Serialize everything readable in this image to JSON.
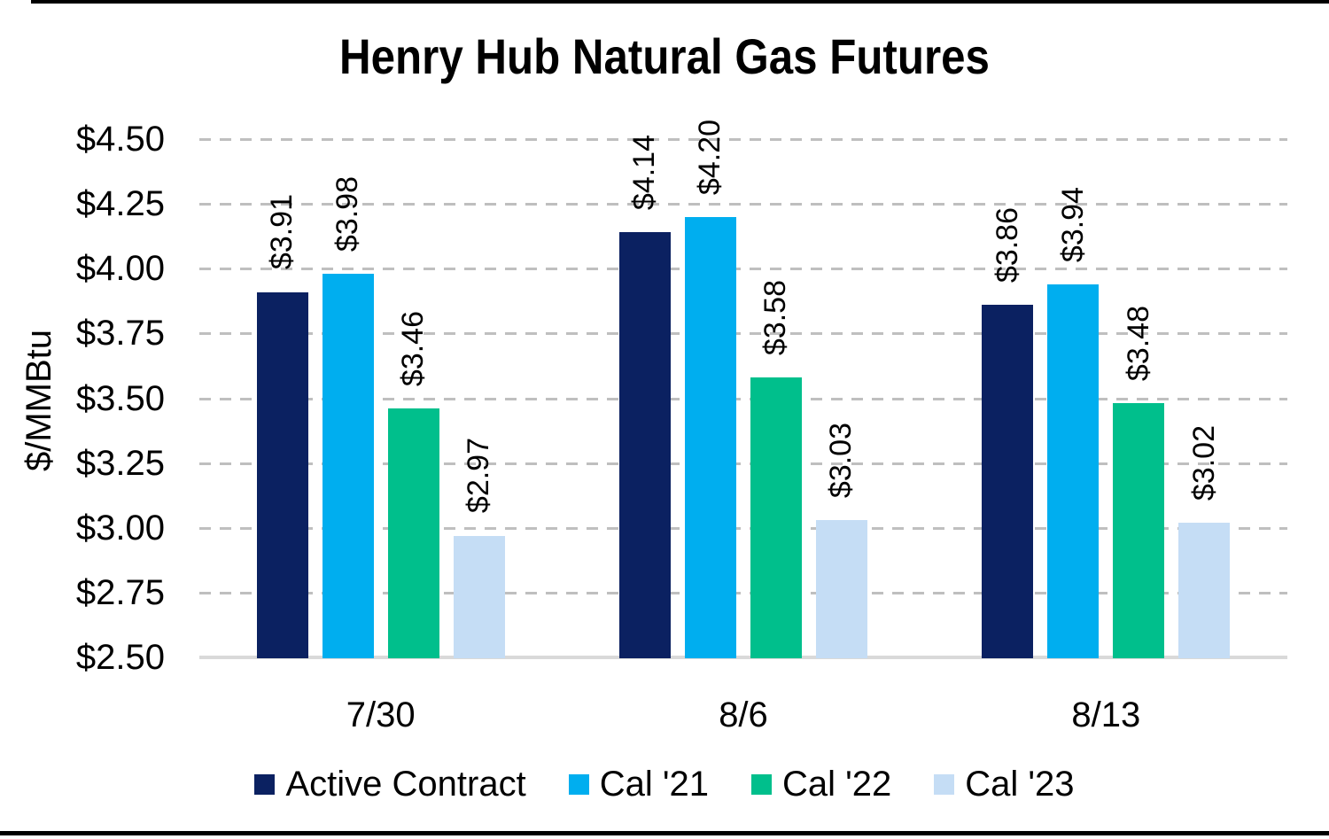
{
  "chart_data": {
    "type": "bar",
    "title": "Henry Hub Natural Gas Futures",
    "ylabel": "$/MMBtu",
    "xlabel": "",
    "categories": [
      "7/30",
      "8/6",
      "8/13"
    ],
    "series": [
      {
        "name": "Active Contract",
        "color": "#0B2161",
        "values": [
          3.91,
          4.14,
          3.86
        ],
        "labels": [
          "$3.91",
          "$4.14",
          "$3.86"
        ]
      },
      {
        "name": "Cal '21",
        "color": "#00AEEF",
        "values": [
          3.98,
          4.2,
          3.94
        ],
        "labels": [
          "$3.98",
          "$4.20",
          "$3.94"
        ]
      },
      {
        "name": "Cal '22",
        "color": "#00BF8C",
        "values": [
          3.46,
          3.58,
          3.48
        ],
        "labels": [
          "$3.46",
          "$3.58",
          "$3.48"
        ]
      },
      {
        "name": "Cal '23",
        "color": "#C5DDF5",
        "values": [
          2.97,
          3.03,
          3.02
        ],
        "labels": [
          "$2.97",
          "$3.03",
          "$3.02"
        ]
      }
    ],
    "ylim": [
      2.5,
      4.5
    ],
    "ytick_step": 0.25,
    "ytick_labels": [
      "$2.50",
      "$2.75",
      "$3.00",
      "$3.25",
      "$3.50",
      "$3.75",
      "$4.00",
      "$4.25",
      "$4.50"
    ],
    "grid": "horizontal-dashed",
    "legend_position": "bottom"
  },
  "colors": {
    "gridline": "#BFBFBF",
    "axis_line": "#D9D9D9",
    "text": "#000000",
    "background": "#FFFFFF",
    "border_rule": "#000000"
  }
}
